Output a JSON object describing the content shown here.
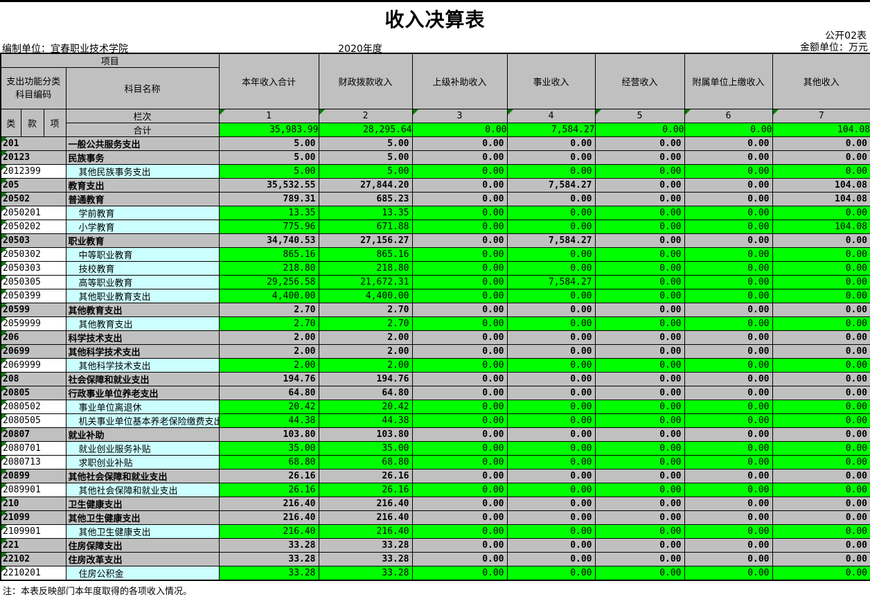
{
  "page": {
    "title": "收入决算表",
    "table_number": "公开02表",
    "org_unit": "编制单位：宜春职业技术学院",
    "fiscal_year": "2020年度",
    "amount_unit": "金额单位：万元",
    "footnote": "注：本表反映部门本年度取得的各项收入情况。"
  },
  "header": {
    "project_label": "项目",
    "code_label_line1": "支出功能分类",
    "code_label_line2": "科目编码",
    "subject_name_label": "科目名称",
    "code_cols": [
      "类",
      "款",
      "项"
    ],
    "value_cols": [
      "本年收入合计",
      "财政拨款收入",
      "上级补助收入",
      "事业收入",
      "经营收入",
      "附属单位上缴收入",
      "其他收入"
    ],
    "row_index_label": "栏次",
    "col_numbers": [
      "1",
      "2",
      "3",
      "4",
      "5",
      "6",
      "7"
    ],
    "total_label": "合计"
  },
  "totals": [
    "35,983.99",
    "28,295.64",
    "0.00",
    "7,584.27",
    "0.00",
    "0.00",
    "104.08"
  ],
  "rows": [
    {
      "code": "201",
      "name": "一般公共服务支出",
      "type": "group",
      "values": [
        "5.00",
        "5.00",
        "0.00",
        "0.00",
        "0.00",
        "0.00",
        "0.00"
      ]
    },
    {
      "code": "20123",
      "name": "民族事务",
      "type": "group",
      "values": [
        "5.00",
        "5.00",
        "0.00",
        "0.00",
        "0.00",
        "0.00",
        "0.00"
      ]
    },
    {
      "code": "2012399",
      "name": "其他民族事务支出",
      "type": "leaf",
      "values": [
        "5.00",
        "5.00",
        "0.00",
        "0.00",
        "0.00",
        "0.00",
        "0.00"
      ]
    },
    {
      "code": "205",
      "name": "教育支出",
      "type": "group",
      "values": [
        "35,532.55",
        "27,844.20",
        "0.00",
        "7,584.27",
        "0.00",
        "0.00",
        "104.08"
      ]
    },
    {
      "code": "20502",
      "name": "普通教育",
      "type": "group",
      "values": [
        "789.31",
        "685.23",
        "0.00",
        "0.00",
        "0.00",
        "0.00",
        "104.08"
      ]
    },
    {
      "code": "2050201",
      "name": "学前教育",
      "type": "leaf",
      "values": [
        "13.35",
        "13.35",
        "0.00",
        "0.00",
        "0.00",
        "0.00",
        "0.00"
      ]
    },
    {
      "code": "2050202",
      "name": "小学教育",
      "type": "leaf",
      "values": [
        "775.96",
        "671.88",
        "0.00",
        "0.00",
        "0.00",
        "0.00",
        "104.08"
      ]
    },
    {
      "code": "20503",
      "name": "职业教育",
      "type": "group",
      "values": [
        "34,740.53",
        "27,156.27",
        "0.00",
        "7,584.27",
        "0.00",
        "0.00",
        "0.00"
      ]
    },
    {
      "code": "2050302",
      "name": "中等职业教育",
      "type": "leaf",
      "values": [
        "865.16",
        "865.16",
        "0.00",
        "0.00",
        "0.00",
        "0.00",
        "0.00"
      ]
    },
    {
      "code": "2050303",
      "name": "技校教育",
      "type": "leaf",
      "values": [
        "218.80",
        "218.80",
        "0.00",
        "0.00",
        "0.00",
        "0.00",
        "0.00"
      ]
    },
    {
      "code": "2050305",
      "name": "高等职业教育",
      "type": "leaf",
      "values": [
        "29,256.58",
        "21,672.31",
        "0.00",
        "7,584.27",
        "0.00",
        "0.00",
        "0.00"
      ]
    },
    {
      "code": "2050399",
      "name": "其他职业教育支出",
      "type": "leaf",
      "values": [
        "4,400.00",
        "4,400.00",
        "0.00",
        "0.00",
        "0.00",
        "0.00",
        "0.00"
      ]
    },
    {
      "code": "20599",
      "name": "其他教育支出",
      "type": "group",
      "values": [
        "2.70",
        "2.70",
        "0.00",
        "0.00",
        "0.00",
        "0.00",
        "0.00"
      ]
    },
    {
      "code": "2059999",
      "name": "其他教育支出",
      "type": "leaf",
      "values": [
        "2.70",
        "2.70",
        "0.00",
        "0.00",
        "0.00",
        "0.00",
        "0.00"
      ]
    },
    {
      "code": "206",
      "name": "科学技术支出",
      "type": "group",
      "values": [
        "2.00",
        "2.00",
        "0.00",
        "0.00",
        "0.00",
        "0.00",
        "0.00"
      ]
    },
    {
      "code": "20699",
      "name": "其他科学技术支出",
      "type": "group",
      "values": [
        "2.00",
        "2.00",
        "0.00",
        "0.00",
        "0.00",
        "0.00",
        "0.00"
      ]
    },
    {
      "code": "2069999",
      "name": "其他科学技术支出",
      "type": "leaf",
      "values": [
        "2.00",
        "2.00",
        "0.00",
        "0.00",
        "0.00",
        "0.00",
        "0.00"
      ]
    },
    {
      "code": "208",
      "name": "社会保障和就业支出",
      "type": "group",
      "values": [
        "194.76",
        "194.76",
        "0.00",
        "0.00",
        "0.00",
        "0.00",
        "0.00"
      ]
    },
    {
      "code": "20805",
      "name": "行政事业单位养老支出",
      "type": "group",
      "values": [
        "64.80",
        "64.80",
        "0.00",
        "0.00",
        "0.00",
        "0.00",
        "0.00"
      ]
    },
    {
      "code": "2080502",
      "name": "事业单位离退休",
      "type": "leaf",
      "values": [
        "20.42",
        "20.42",
        "0.00",
        "0.00",
        "0.00",
        "0.00",
        "0.00"
      ]
    },
    {
      "code": "2080505",
      "name": "机关事业单位基本养老保险缴费支出",
      "type": "leaf",
      "values": [
        "44.38",
        "44.38",
        "0.00",
        "0.00",
        "0.00",
        "0.00",
        "0.00"
      ]
    },
    {
      "code": "20807",
      "name": "就业补助",
      "type": "group",
      "values": [
        "103.80",
        "103.80",
        "0.00",
        "0.00",
        "0.00",
        "0.00",
        "0.00"
      ]
    },
    {
      "code": "2080701",
      "name": "就业创业服务补贴",
      "type": "leaf",
      "values": [
        "35.00",
        "35.00",
        "0.00",
        "0.00",
        "0.00",
        "0.00",
        "0.00"
      ]
    },
    {
      "code": "2080713",
      "name": "求职创业补贴",
      "type": "leaf",
      "values": [
        "68.80",
        "68.80",
        "0.00",
        "0.00",
        "0.00",
        "0.00",
        "0.00"
      ]
    },
    {
      "code": "20899",
      "name": "其他社会保障和就业支出",
      "type": "group",
      "values": [
        "26.16",
        "26.16",
        "0.00",
        "0.00",
        "0.00",
        "0.00",
        "0.00"
      ]
    },
    {
      "code": "2089901",
      "name": "其他社会保障和就业支出",
      "type": "leaf",
      "values": [
        "26.16",
        "26.16",
        "0.00",
        "0.00",
        "0.00",
        "0.00",
        "0.00"
      ]
    },
    {
      "code": "210",
      "name": "卫生健康支出",
      "type": "group",
      "values": [
        "216.40",
        "216.40",
        "0.00",
        "0.00",
        "0.00",
        "0.00",
        "0.00"
      ]
    },
    {
      "code": "21099",
      "name": "其他卫生健康支出",
      "type": "group",
      "values": [
        "216.40",
        "216.40",
        "0.00",
        "0.00",
        "0.00",
        "0.00",
        "0.00"
      ]
    },
    {
      "code": "2109901",
      "name": "其他卫生健康支出",
      "type": "leaf",
      "values": [
        "216.40",
        "216.40",
        "0.00",
        "0.00",
        "0.00",
        "0.00",
        "0.00"
      ]
    },
    {
      "code": "221",
      "name": "住房保障支出",
      "type": "group",
      "values": [
        "33.28",
        "33.28",
        "0.00",
        "0.00",
        "0.00",
        "0.00",
        "0.00"
      ]
    },
    {
      "code": "22102",
      "name": "住房改革支出",
      "type": "group",
      "values": [
        "33.28",
        "33.28",
        "0.00",
        "0.00",
        "0.00",
        "0.00",
        "0.00"
      ]
    },
    {
      "code": "2210201",
      "name": "住房公积金",
      "type": "leaf",
      "values": [
        "33.28",
        "33.28",
        "0.00",
        "0.00",
        "0.00",
        "0.00",
        "0.00"
      ]
    }
  ],
  "colors": {
    "header_gray": "#c0c0c0",
    "leaf_value_green": "#00ff00",
    "leaf_name_cyan": "#ccffff",
    "indicator_triangle_green": "#007c00"
  }
}
